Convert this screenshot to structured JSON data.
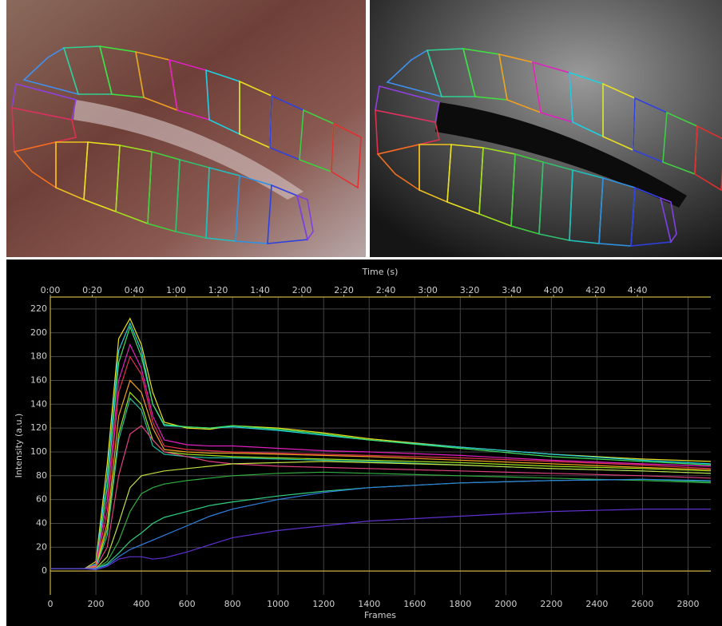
{
  "chart_data": {
    "type": "line",
    "x2_label": "Time (s)",
    "x_label": "Frames",
    "y_label": "Intensity (a.u.)",
    "x": [
      0,
      150,
      200,
      250,
      300,
      350,
      400,
      450,
      500,
      600,
      700,
      800,
      1000,
      1200,
      1400,
      1800,
      2200,
      2600,
      2900
    ],
    "xlim": [
      0,
      2900
    ],
    "xticks": [
      0,
      200,
      400,
      600,
      800,
      1000,
      1200,
      1400,
      1600,
      1800,
      2000,
      2200,
      2400,
      2600,
      2800
    ],
    "x2lim": [
      0,
      315
    ],
    "x2ticks": [
      {
        "value": 0,
        "label": "0:00"
      },
      {
        "value": 20,
        "label": "0:20"
      },
      {
        "value": 40,
        "label": "0:40"
      },
      {
        "value": 60,
        "label": "1:00"
      },
      {
        "value": 80,
        "label": "1:20"
      },
      {
        "value": 100,
        "label": "1:40"
      },
      {
        "value": 120,
        "label": "2:00"
      },
      {
        "value": 140,
        "label": "2:20"
      },
      {
        "value": 160,
        "label": "2:40"
      },
      {
        "value": 180,
        "label": "3:00"
      },
      {
        "value": 200,
        "label": "3:20"
      },
      {
        "value": 220,
        "label": "3:40"
      },
      {
        "value": 240,
        "label": "4:00"
      },
      {
        "value": 260,
        "label": "4:20"
      },
      {
        "value": 280,
        "label": "4:40"
      }
    ],
    "ylim": [
      -20,
      230
    ],
    "yticks": [
      0,
      20,
      40,
      60,
      80,
      100,
      120,
      140,
      160,
      180,
      200,
      220
    ],
    "grid": true,
    "series": [
      {
        "color": "#e8e020",
        "values": [
          2,
          2,
          8,
          90,
          195,
          212,
          190,
          150,
          125,
          120,
          119,
          122,
          120,
          116,
          111,
          104,
          98,
          94,
          92
        ]
      },
      {
        "color": "#20d0e0",
        "values": [
          2,
          2,
          6,
          80,
          185,
          208,
          185,
          140,
          122,
          121,
          120,
          121,
          118,
          114,
          110,
          104,
          98,
          93,
          90
        ]
      },
      {
        "color": "#40e060",
        "values": [
          2,
          2,
          5,
          70,
          175,
          205,
          180,
          140,
          123,
          121,
          120,
          122,
          119,
          115,
          110,
          103,
          96,
          92,
          89
        ]
      },
      {
        "color": "#e020c0",
        "values": [
          2,
          2,
          5,
          60,
          160,
          190,
          170,
          130,
          110,
          106,
          105,
          105,
          103,
          101,
          100,
          97,
          93,
          90,
          88
        ]
      },
      {
        "color": "#e03050",
        "values": [
          2,
          2,
          4,
          50,
          150,
          180,
          165,
          125,
          105,
          102,
          101,
          100,
          99,
          98,
          97,
          95,
          92,
          89,
          86
        ]
      },
      {
        "color": "#f0a020",
        "values": [
          2,
          2,
          4,
          40,
          130,
          160,
          150,
          120,
          102,
          100,
          99,
          99,
          98,
          97,
          96,
          93,
          90,
          87,
          85
        ]
      },
      {
        "color": "#a0e020",
        "values": [
          2,
          2,
          3,
          35,
          115,
          150,
          140,
          110,
          100,
          98,
          97,
          96,
          95,
          94,
          93,
          91,
          88,
          86,
          84
        ]
      },
      {
        "color": "#20c0a0",
        "values": [
          2,
          2,
          3,
          30,
          110,
          145,
          135,
          105,
          98,
          96,
          95,
          95,
          94,
          93,
          92,
          89,
          86,
          84,
          82
        ]
      },
      {
        "color": "#e04080",
        "values": [
          2,
          2,
          3,
          20,
          80,
          115,
          122,
          110,
          100,
          96,
          92,
          90,
          88,
          87,
          86,
          84,
          82,
          80,
          78
        ]
      },
      {
        "color": "#c0e040",
        "values": [
          2,
          2,
          2,
          12,
          40,
          70,
          80,
          82,
          84,
          86,
          88,
          90,
          91,
          92,
          91,
          89,
          86,
          84,
          82
        ]
      },
      {
        "color": "#30b040",
        "values": [
          2,
          2,
          2,
          8,
          25,
          50,
          65,
          70,
          73,
          76,
          78,
          80,
          82,
          83,
          82,
          80,
          78,
          76,
          74
        ]
      },
      {
        "color": "#30d080",
        "values": [
          2,
          2,
          2,
          6,
          15,
          25,
          32,
          40,
          45,
          50,
          55,
          58,
          63,
          67,
          70,
          74,
          76,
          77,
          75
        ]
      },
      {
        "color": "#3080e0",
        "values": [
          2,
          2,
          2,
          5,
          12,
          18,
          22,
          26,
          30,
          38,
          46,
          52,
          60,
          66,
          70,
          74,
          76,
          77,
          76
        ]
      },
      {
        "color": "#6030d0",
        "values": [
          2,
          2,
          1,
          4,
          10,
          12,
          12,
          10,
          11,
          16,
          22,
          28,
          34,
          38,
          42,
          46,
          50,
          52,
          52
        ]
      }
    ]
  }
}
